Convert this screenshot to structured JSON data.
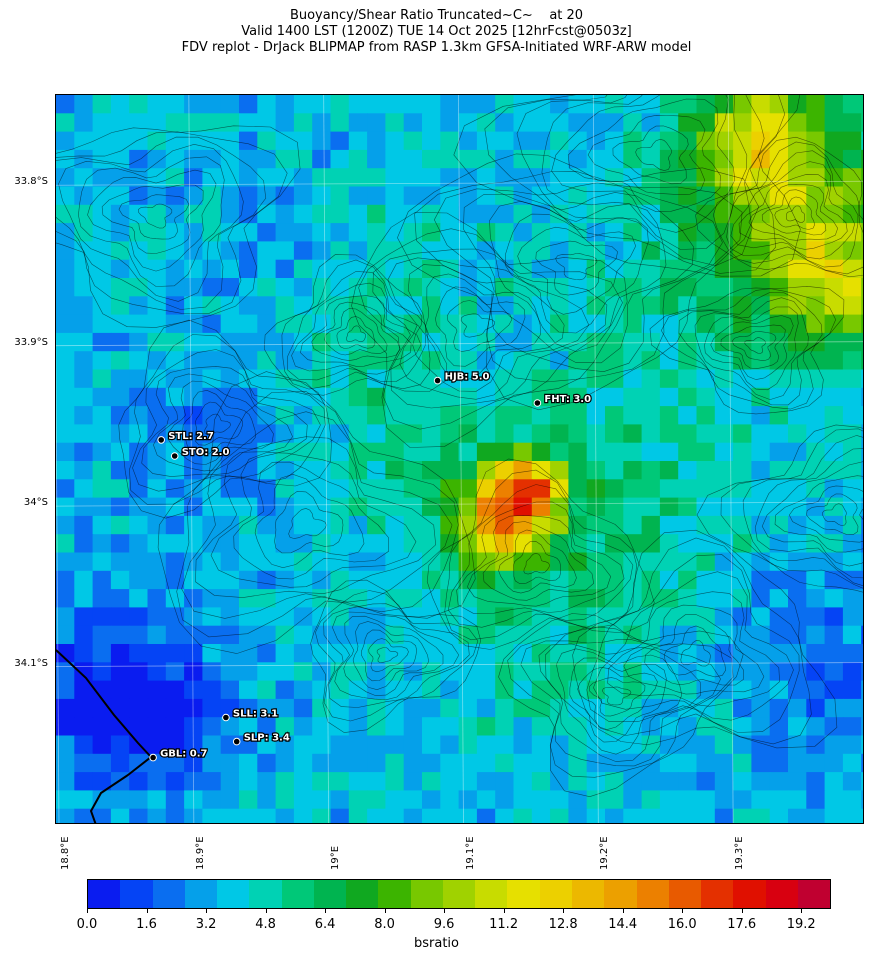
{
  "title": {
    "line1": "Buoyancy/Shear Ratio Truncated~C~    at 20",
    "line2": "Valid 1400 LST (1200Z) TUE 14 Oct 2025 [12hrFcst@0503z]",
    "line3": "FDV replot - DrJack BLIPMAP from RASP 1.3km GFSA-Initiated WRF-ARW model"
  },
  "map": {
    "lat_labels": [
      "33.8°S",
      "33.9°S",
      "34°S",
      "34.1°S"
    ],
    "lat_values": [
      -33.8,
      -33.9,
      -34.0,
      -34.1
    ],
    "lon_labels": [
      "18.8°E",
      "18.9°E",
      "19°E",
      "19.1°E",
      "19.2°E",
      "19.3°E"
    ],
    "lon_values": [
      18.8,
      18.9,
      19.0,
      19.1,
      19.2,
      19.3
    ],
    "lon_range": [
      18.8,
      19.4
    ],
    "lat_range": [
      -34.2,
      -33.745
    ],
    "stations": [
      {
        "label": "HJB: 5.0",
        "lon": 19.083,
        "lat": -33.923,
        "value": 5.0
      },
      {
        "label": "FHT: 3.0",
        "lon": 19.157,
        "lat": -33.937,
        "value": 3.0
      },
      {
        "label": "STL: 2.7",
        "lon": 18.878,
        "lat": -33.96,
        "value": 2.7
      },
      {
        "label": "STO: 2.0",
        "lon": 18.888,
        "lat": -33.97,
        "value": 2.0
      },
      {
        "label": "SLL: 3.1",
        "lon": 18.926,
        "lat": -34.133,
        "value": 3.1
      },
      {
        "label": "SLP: 3.4",
        "lon": 18.934,
        "lat": -34.148,
        "value": 3.4
      },
      {
        "label": "GBL: 0.7",
        "lon": 18.872,
        "lat": -34.158,
        "value": 0.7
      }
    ],
    "background_color": "#05a6e8",
    "coastline_color": "#000000"
  },
  "colorbar": {
    "label": "bsratio",
    "tick_labels": [
      "0.0",
      "1.6",
      "3.2",
      "4.8",
      "6.4",
      "8.0",
      "9.6",
      "11.2",
      "12.8",
      "14.4",
      "16.0",
      "17.6",
      "19.2"
    ],
    "min": 0,
    "max": 20,
    "colors": [
      "#0a1cf0",
      "#0544f5",
      "#0a6ef0",
      "#05a0ea",
      "#00c8e6",
      "#00d2b4",
      "#00c878",
      "#00b450",
      "#10a820",
      "#3cb400",
      "#78c800",
      "#a0d200",
      "#c8dc00",
      "#e6e000",
      "#ecd000",
      "#ecb800",
      "#eca000",
      "#ec8000",
      "#e85a00",
      "#e43000",
      "#e01000",
      "#d80010",
      "#c00030"
    ]
  }
}
